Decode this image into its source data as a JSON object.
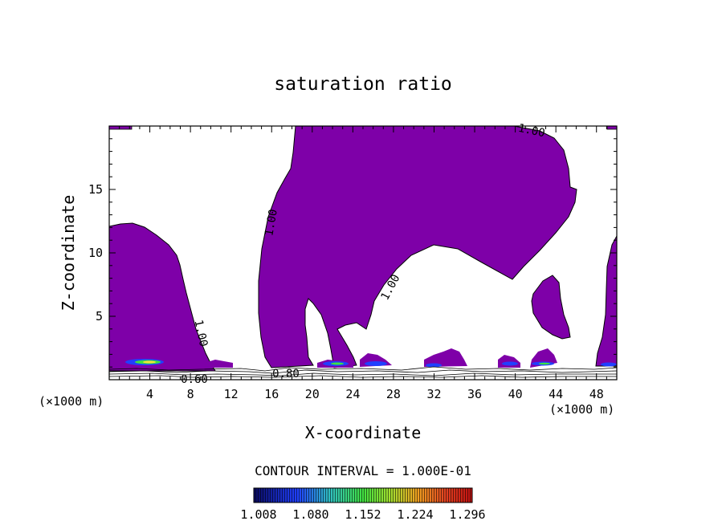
{
  "chart_data": {
    "type": "heatmap",
    "subtype": "filled-contour",
    "title": "saturation ratio",
    "xlabel": "X-coordinate",
    "ylabel": "Z-coordinate",
    "x_unit_left": "(×1000 m)",
    "x_unit_right": "(×1000 m)",
    "xlim": [
      0,
      50
    ],
    "ylim": [
      0,
      20
    ],
    "x_ticks": [
      4,
      8,
      12,
      16,
      20,
      24,
      28,
      32,
      36,
      40,
      44,
      48
    ],
    "y_ticks": [
      5,
      10,
      15
    ],
    "contour_labels": [
      "1.00",
      "1.00",
      "1.00",
      "1.00",
      "0.60",
      "0.80"
    ],
    "contour_interval_text": "CONTOUR INTERVAL = 1.000E-01",
    "colorbar": {
      "labels": [
        "1.008",
        "1.080",
        "1.152",
        "1.224",
        "1.296"
      ],
      "colors": [
        "#0a0a60",
        "#2040ff",
        "#30c0c0",
        "#40e040",
        "#a0e030",
        "#f0a020",
        "#e04020",
        "#c01010"
      ]
    },
    "fill_color": "#7e00a8"
  }
}
